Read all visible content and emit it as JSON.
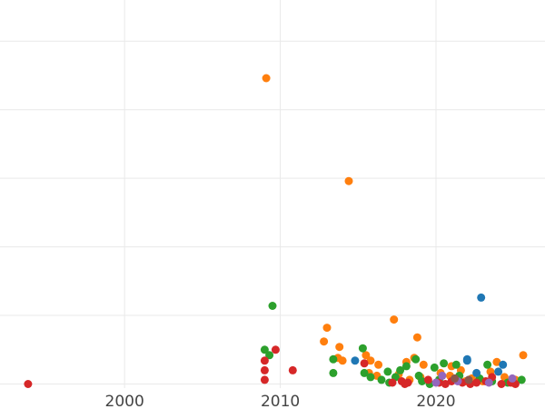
{
  "chart_data": {
    "type": "scatter",
    "title": "",
    "xlabel": "",
    "ylabel": "",
    "xlim": [
      1992,
      2027
    ],
    "ylim": [
      -0.3,
      28
    ],
    "x_ticks": [
      "2000",
      "2010",
      "2020"
    ],
    "x_tick_values": [
      2000,
      2010,
      2020
    ],
    "y_gridlines": [
      0,
      5,
      10,
      15,
      20,
      25
    ],
    "y_tick_labels_visible": false,
    "grid": true,
    "legend": "none",
    "series": [
      {
        "color": "#ff7f0e",
        "points": [
          [
            2009.1,
            22.3
          ],
          [
            2014.4,
            14.8
          ],
          [
            2017.3,
            4.7
          ],
          [
            2018.8,
            3.4
          ],
          [
            2013.0,
            4.1
          ],
          [
            2012.8,
            3.1
          ],
          [
            2013.8,
            2.7
          ],
          [
            2013.7,
            1.9
          ],
          [
            2014.0,
            1.7
          ],
          [
            2015.5,
            2.1
          ],
          [
            2015.8,
            1.7
          ],
          [
            2016.3,
            1.4
          ],
          [
            2018.1,
            1.6
          ],
          [
            2018.6,
            1.9
          ],
          [
            2019.2,
            1.4
          ],
          [
            2021.0,
            1.3
          ],
          [
            2021.6,
            1.0
          ],
          [
            2023.9,
            1.6
          ],
          [
            2025.6,
            2.1
          ],
          [
            2016.2,
            0.6
          ],
          [
            2017.6,
            0.7
          ],
          [
            2019.0,
            0.5
          ],
          [
            2020.3,
            0.8
          ],
          [
            2020.9,
            0.6
          ],
          [
            2022.3,
            0.4
          ],
          [
            2023.5,
            0.9
          ],
          [
            2024.4,
            0.5
          ],
          [
            2025.1,
            0.3
          ],
          [
            2015.7,
            0.8
          ],
          [
            2018.3,
            0.3
          ],
          [
            2021.9,
            0.2
          ],
          [
            2023.0,
            0.2
          ],
          [
            2024.9,
            0.1
          ]
        ]
      },
      {
        "color": "#2ca02c",
        "points": [
          [
            2009.5,
            5.7
          ],
          [
            2009.0,
            2.5
          ],
          [
            2009.3,
            2.1
          ],
          [
            2013.4,
            1.8
          ],
          [
            2013.4,
            0.8
          ],
          [
            2015.3,
            2.6
          ],
          [
            2015.4,
            0.8
          ],
          [
            2015.8,
            0.5
          ],
          [
            2016.9,
            0.9
          ],
          [
            2017.7,
            1.0
          ],
          [
            2018.1,
            1.3
          ],
          [
            2018.7,
            1.8
          ],
          [
            2018.9,
            0.6
          ],
          [
            2019.9,
            1.2
          ],
          [
            2020.5,
            1.5
          ],
          [
            2021.3,
            1.4
          ],
          [
            2023.3,
            1.4
          ],
          [
            2025.5,
            0.3
          ],
          [
            2016.5,
            0.3
          ],
          [
            2017.4,
            0.5
          ],
          [
            2019.1,
            0.2
          ],
          [
            2020.2,
            0.3
          ],
          [
            2021.5,
            0.6
          ],
          [
            2022.8,
            0.4
          ],
          [
            2023.6,
            0.2
          ],
          [
            2024.6,
            0.1
          ],
          [
            2019.6,
            0.0
          ],
          [
            2017.0,
            0.1
          ]
        ]
      },
      {
        "color": "#d62728",
        "points": [
          [
            1993.8,
            0.0
          ],
          [
            2009.7,
            2.5
          ],
          [
            2009.0,
            1.7
          ],
          [
            2009.0,
            1.0
          ],
          [
            2009.0,
            0.3
          ],
          [
            2010.8,
            1.0
          ],
          [
            2015.4,
            1.5
          ],
          [
            2017.2,
            0.1
          ],
          [
            2017.8,
            0.2
          ],
          [
            2018.2,
            0.1
          ],
          [
            2019.5,
            0.3
          ],
          [
            2020.2,
            0.1
          ],
          [
            2021.0,
            0.2
          ],
          [
            2021.7,
            0.1
          ],
          [
            2022.2,
            0.0
          ],
          [
            2022.6,
            0.1
          ],
          [
            2023.2,
            0.2
          ],
          [
            2023.6,
            0.5
          ],
          [
            2024.2,
            0.0
          ],
          [
            2024.8,
            0.1
          ],
          [
            2025.1,
            0.0
          ],
          [
            2018.0,
            0.0
          ],
          [
            2020.6,
            0.0
          ]
        ]
      },
      {
        "color": "#1f77b4",
        "points": [
          [
            2014.8,
            1.7
          ],
          [
            2022.0,
            1.7
          ],
          [
            2022.9,
            6.3
          ],
          [
            2024.3,
            1.4
          ],
          [
            2022.6,
            0.8
          ],
          [
            2024.0,
            0.9
          ],
          [
            2022.0,
            1.8
          ]
        ]
      },
      {
        "color": "#9467bd",
        "points": [
          [
            2020.4,
            0.6
          ],
          [
            2021.4,
            0.2
          ],
          [
            2023.4,
            0.1
          ],
          [
            2024.9,
            0.4
          ],
          [
            2020.0,
            0.1
          ]
        ]
      },
      {
        "color": "#8c564b",
        "points": [
          [
            2021.2,
            0.4
          ],
          [
            2022.1,
            0.3
          ]
        ]
      }
    ]
  }
}
